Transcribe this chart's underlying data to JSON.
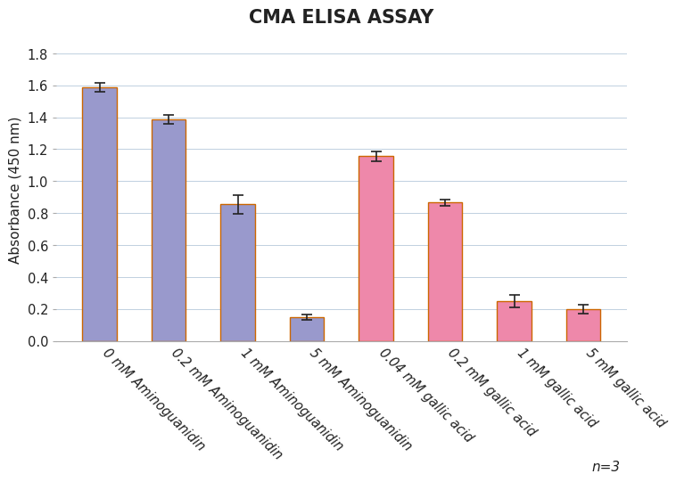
{
  "title": "CMA ELISA ASSAY",
  "ylabel": "Absorbance (450 nm)",
  "categories": [
    "0 mM Aminoguanidin",
    "0.2 mM Aminoguanidin",
    "1 mM Aminoguanidin",
    "5 mM Aminoguanidin",
    "0.04 mM gallic acid",
    "0.2 mM gallic acid",
    "1 mM gallic acid",
    "5 mM gallic acid"
  ],
  "values": [
    1.585,
    1.385,
    0.855,
    0.148,
    1.155,
    0.865,
    0.25,
    0.198
  ],
  "errors": [
    0.028,
    0.028,
    0.06,
    0.018,
    0.028,
    0.022,
    0.04,
    0.028
  ],
  "bar_colors": [
    "#9999cc",
    "#9999cc",
    "#9999cc",
    "#9999cc",
    "#ee88aa",
    "#ee88aa",
    "#ee88aa",
    "#ee88aa"
  ],
  "bar_edge_color": "#cc6600",
  "ylim": [
    0,
    1.9
  ],
  "yticks": [
    0,
    0.2,
    0.4,
    0.6,
    0.8,
    1.0,
    1.2,
    1.4,
    1.6,
    1.8
  ],
  "grid_color": "#c0d0e0",
  "grid_linewidth": 0.7,
  "background_color": "#ffffff",
  "plot_bg_color": "#ffffff",
  "n_label": "n=3",
  "title_fontsize": 15,
  "axis_label_fontsize": 11,
  "tick_fontsize": 10.5,
  "annotation_fontsize": 11,
  "bar_width": 0.5
}
